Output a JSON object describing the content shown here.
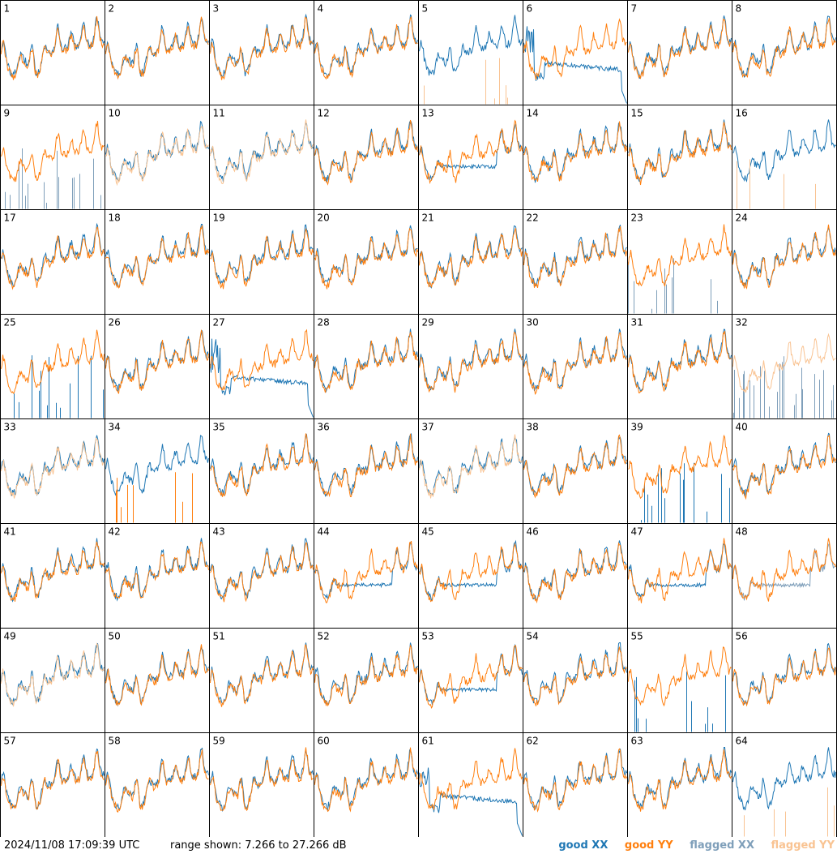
{
  "chart_data": {
    "type": "line",
    "grid": "8x8 small multiples",
    "panel_labels": [
      "1",
      "2",
      "3",
      "4",
      "5",
      "6",
      "7",
      "8",
      "9",
      "10",
      "11",
      "12",
      "13",
      "14",
      "15",
      "16",
      "17",
      "18",
      "19",
      "20",
      "21",
      "22",
      "23",
      "24",
      "25",
      "26",
      "27",
      "28",
      "29",
      "30",
      "31",
      "32",
      "33",
      "34",
      "35",
      "36",
      "37",
      "38",
      "39",
      "40",
      "41",
      "42",
      "43",
      "44",
      "45",
      "46",
      "47",
      "48",
      "49",
      "50",
      "51",
      "52",
      "53",
      "54",
      "55",
      "56",
      "57",
      "58",
      "59",
      "60",
      "61",
      "62",
      "63",
      "64"
    ],
    "ylim_db": [
      7.266,
      27.266
    ],
    "legend": [
      {
        "key": "goodXX",
        "label": "good XX",
        "color": "#1f77b4"
      },
      {
        "key": "goodYY",
        "label": "good YY",
        "color": "#ff7f0e"
      },
      {
        "key": "flagXX",
        "label": "flagged XX",
        "color": "#7f9fba"
      },
      {
        "key": "flagYY",
        "label": "flagged YY",
        "color": "#f9c392"
      }
    ],
    "panel_types": {
      "dead": [
        5,
        16,
        34,
        64
      ],
      "droop": [
        6,
        27,
        61
      ],
      "flat": [
        44,
        45,
        47,
        48,
        53,
        13
      ],
      "spikes_xx": [
        9,
        23,
        39,
        55,
        25,
        32
      ],
      "flagged_xx": [
        9,
        23,
        32,
        48
      ],
      "flagged_yy": [
        5,
        10,
        11,
        16,
        32,
        33,
        37,
        49,
        64
      ]
    }
  },
  "footer": {
    "timestamp": "2024/11/08 17:09:39 UTC",
    "range": "range shown: 7.266 to 27.266 dB"
  }
}
